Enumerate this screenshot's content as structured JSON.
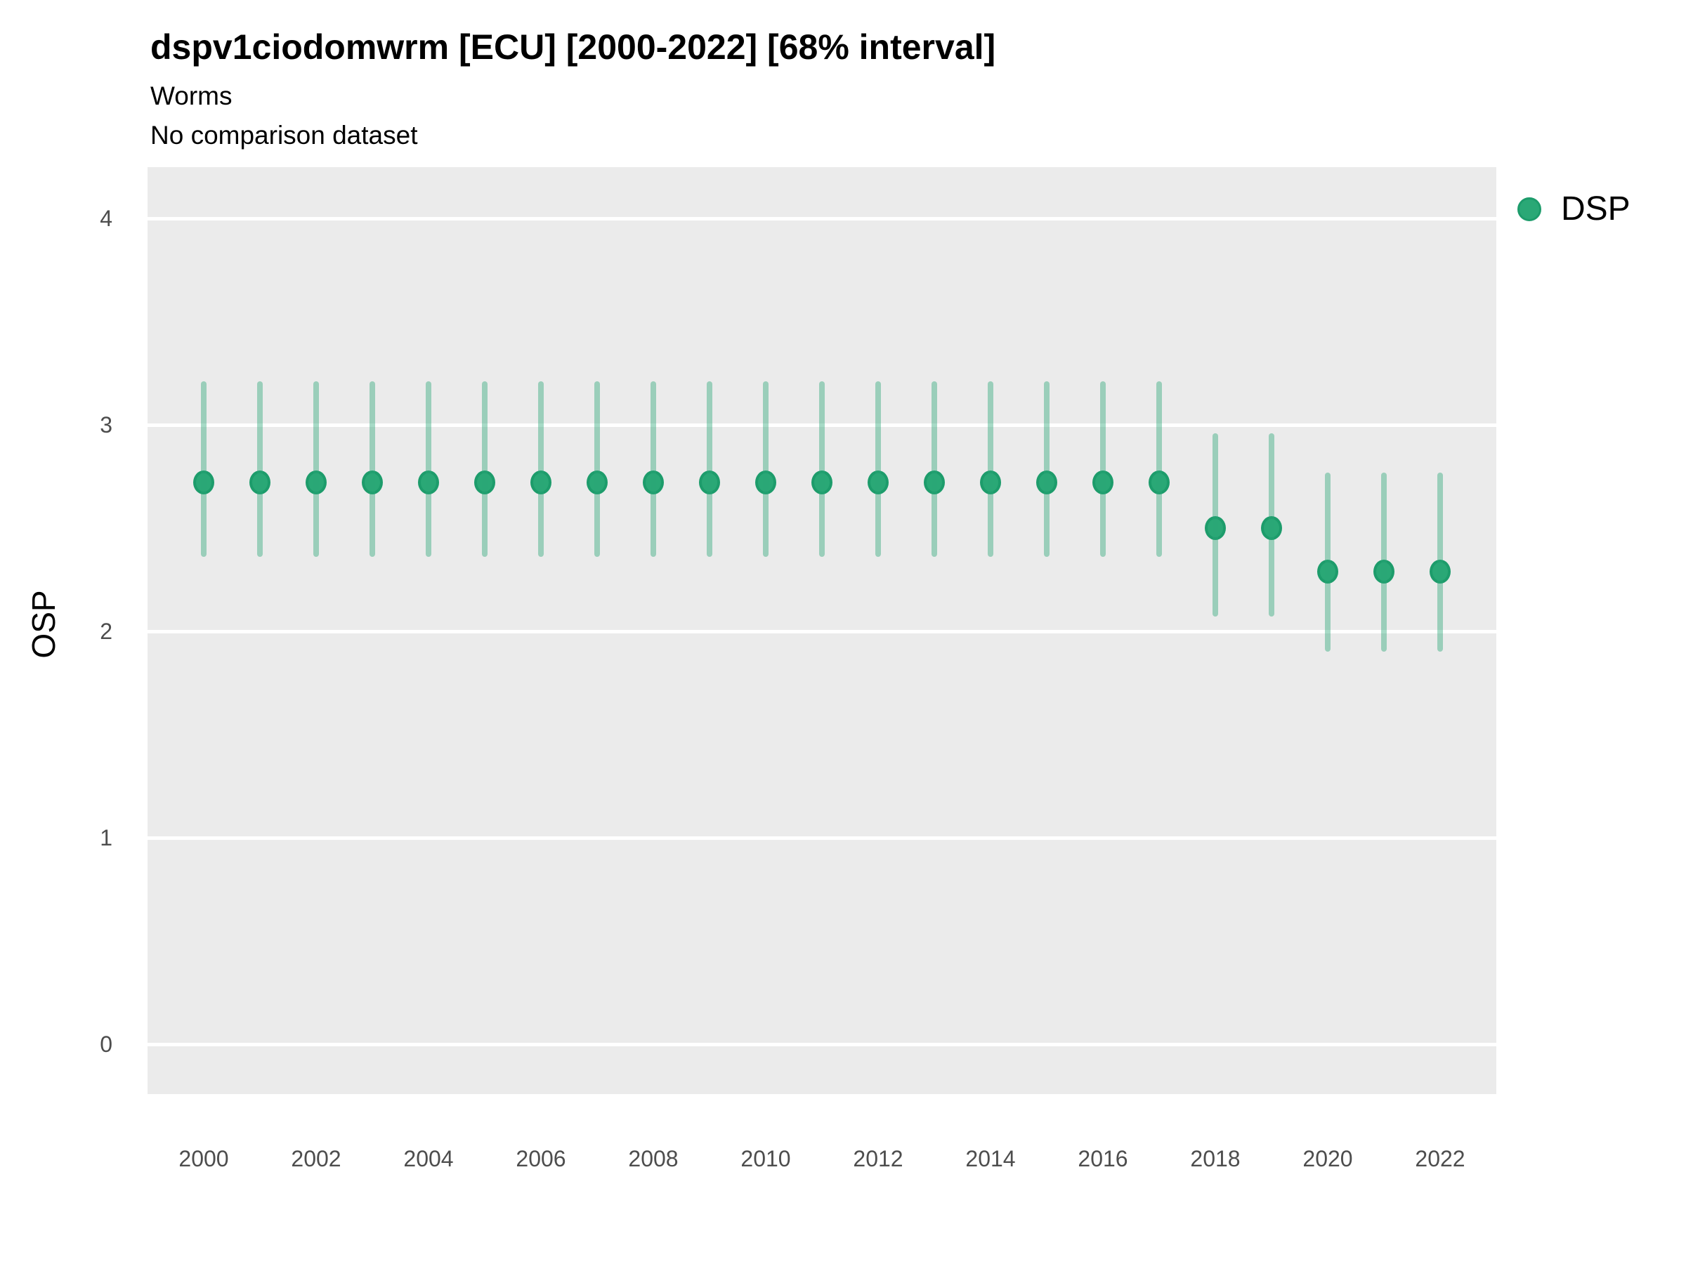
{
  "header": {
    "title": "dspv1ciodomwrm [ECU] [2000-2022] [68% interval]",
    "subtitle": "Worms",
    "comparison_note": "No comparison dataset"
  },
  "legend": {
    "label": "DSP"
  },
  "colors": {
    "point_fill": "#2aa876",
    "point_border": "#1d9c6b",
    "interval_bar": "rgba(42,168,120,0.42)",
    "plot_background": "#ebebeb",
    "gridline": "#ffffff",
    "tick_text": "#4d4d4d"
  },
  "chart_data": {
    "type": "scatter",
    "title": "dspv1ciodomwrm [ECU] [2000-2022] [68% interval]",
    "subtitle": "Worms",
    "note": "No comparison dataset",
    "xlabel": "",
    "ylabel": "OSP",
    "interval": "68%",
    "legend_position": "right",
    "grid": "major horizontal white lines on gray panel",
    "ylim": [
      -0.25,
      4.25
    ],
    "yticks": [
      0,
      1,
      2,
      3,
      4
    ],
    "xticks": [
      2000,
      2002,
      2004,
      2006,
      2008,
      2010,
      2012,
      2014,
      2016,
      2018,
      2020,
      2022
    ],
    "x": [
      2000,
      2001,
      2002,
      2003,
      2004,
      2005,
      2006,
      2007,
      2008,
      2009,
      2010,
      2011,
      2012,
      2013,
      2014,
      2015,
      2016,
      2017,
      2018,
      2019,
      2020,
      2021,
      2022
    ],
    "series": [
      {
        "name": "DSP",
        "values": [
          2.72,
          2.72,
          2.72,
          2.72,
          2.72,
          2.72,
          2.72,
          2.72,
          2.72,
          2.72,
          2.72,
          2.72,
          2.72,
          2.72,
          2.72,
          2.72,
          2.72,
          2.72,
          2.5,
          2.5,
          2.29,
          2.29,
          2.29
        ],
        "lower": [
          2.36,
          2.36,
          2.36,
          2.36,
          2.36,
          2.36,
          2.36,
          2.36,
          2.36,
          2.36,
          2.36,
          2.36,
          2.36,
          2.36,
          2.36,
          2.36,
          2.36,
          2.36,
          2.07,
          2.07,
          1.9,
          1.9,
          1.9
        ],
        "upper": [
          3.21,
          3.21,
          3.21,
          3.21,
          3.21,
          3.21,
          3.21,
          3.21,
          3.21,
          3.21,
          3.21,
          3.21,
          3.21,
          3.21,
          3.21,
          3.21,
          3.21,
          3.21,
          2.96,
          2.96,
          2.77,
          2.77,
          2.77
        ]
      }
    ]
  }
}
